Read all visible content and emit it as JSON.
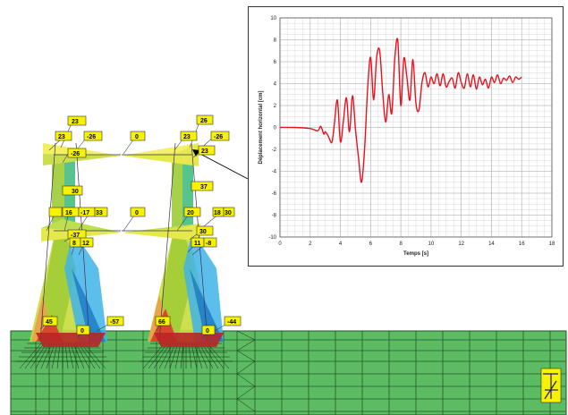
{
  "colors": {
    "mesh_green": "#5dbb63",
    "mesh_line": "#1f5a24",
    "label_yellow": "#f6f200",
    "curve_red": "#e8111f"
  },
  "labels": {
    "lvl2_top": [
      "23",
      "26"
    ],
    "lvl2_row": [
      "23",
      "-26",
      "0",
      "23",
      "-26"
    ],
    "lvl2_inner": [
      "-26",
      "23"
    ],
    "mid_a": [
      "30",
      "37"
    ],
    "lvl1_row": [
      "16",
      "-17",
      "33",
      "0",
      "20",
      "18",
      "30"
    ],
    "lvl1_inner": [
      "-37",
      "8",
      "12",
      "30",
      "11",
      "-8"
    ],
    "base": [
      "45",
      "-57",
      "66",
      "-44"
    ],
    "base_zero": [
      "0",
      "0"
    ]
  },
  "chart_data": {
    "type": "line",
    "xlabel": "Temps [s]",
    "ylabel": "Déplacement horizontal [cm]",
    "xlim": [
      0,
      18
    ],
    "ylim": [
      -10,
      10
    ],
    "xticks": [
      0,
      2,
      4,
      6,
      8,
      10,
      12,
      14,
      16,
      18
    ],
    "yticks": [
      -10,
      -8,
      -6,
      -4,
      -2,
      0,
      2,
      4,
      6,
      8,
      10
    ],
    "grid": true,
    "series": [
      {
        "color": "#e8111f",
        "x": [
          0,
          1.0,
          2.0,
          2.5,
          2.7,
          2.9,
          3.0,
          3.2,
          3.4,
          3.5,
          3.6,
          3.8,
          4.0,
          4.2,
          4.4,
          4.6,
          4.8,
          5.0,
          5.2,
          5.4,
          5.6,
          5.8,
          6.0,
          6.2,
          6.4,
          6.6,
          6.8,
          7.0,
          7.2,
          7.4,
          7.6,
          7.8,
          8.0,
          8.2,
          8.4,
          8.6,
          8.8,
          9.0,
          9.2,
          9.4,
          9.6,
          9.8,
          10.0,
          10.2,
          10.4,
          10.6,
          10.8,
          11.0,
          11.2,
          11.4,
          11.6,
          11.8,
          12.0,
          12.2,
          12.4,
          12.6,
          12.8,
          13.0,
          13.2,
          13.4,
          13.6,
          13.8,
          14.0,
          14.2,
          14.4,
          14.6,
          14.8,
          15.0,
          15.2,
          15.4,
          15.6,
          15.8,
          16.0
        ],
        "y": [
          0,
          0,
          -0.1,
          -0.3,
          0.1,
          -0.6,
          -0.4,
          -0.8,
          -1.4,
          -0.9,
          0.3,
          2.5,
          -1.3,
          0.6,
          2.7,
          -0.4,
          2.9,
          -0.2,
          -2.8,
          -5.0,
          -2.0,
          3.5,
          6.4,
          2.5,
          6.4,
          7.0,
          3.2,
          0.5,
          3.0,
          1.3,
          6.3,
          7.9,
          2.0,
          6.3,
          4.6,
          2.5,
          6.2,
          2.2,
          1.6,
          4.1,
          5.0,
          3.7,
          4.6,
          4.0,
          4.9,
          3.8,
          4.9,
          3.7,
          4.2,
          4.5,
          3.6,
          5.0,
          4.1,
          3.6,
          4.9,
          3.7,
          4.8,
          3.5,
          4.6,
          3.9,
          4.4,
          3.6,
          4.6,
          4.1,
          4.8,
          4.0,
          4.5,
          4.3,
          4.7,
          4.1,
          4.6,
          4.4,
          4.6
        ]
      }
    ]
  }
}
